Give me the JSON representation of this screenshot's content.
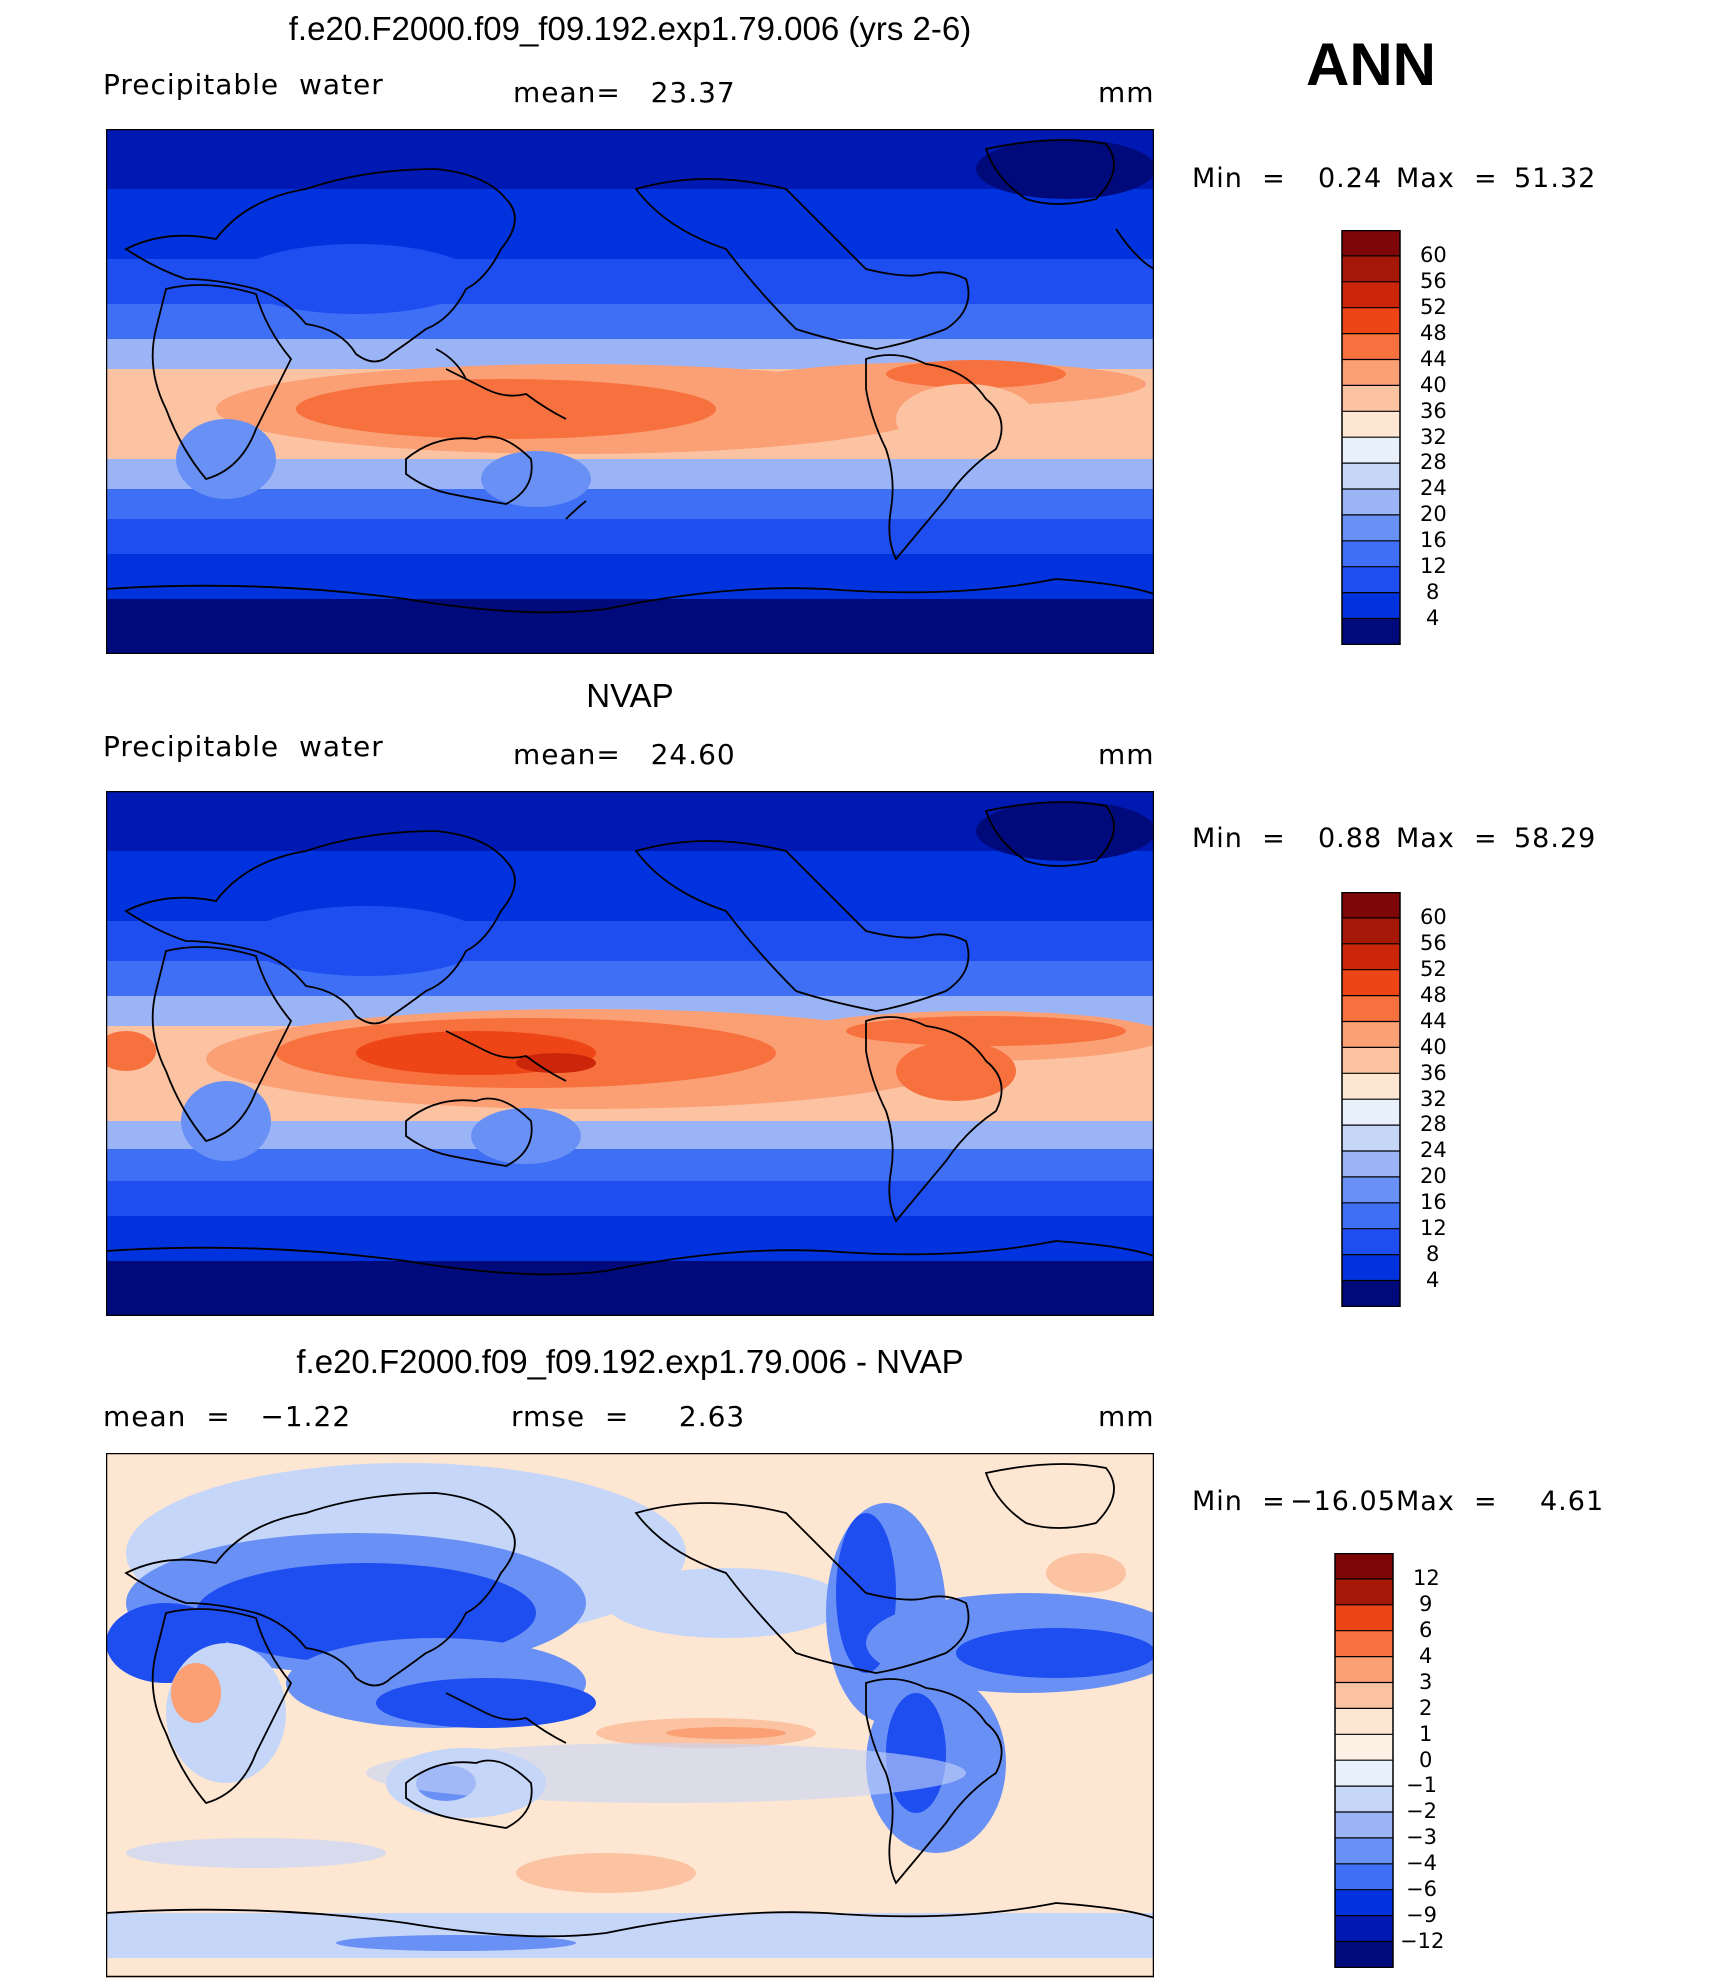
{
  "season": "ANN",
  "colors": {
    "ramp": [
      "#000a7a",
      "#0019b2",
      "#0033dd",
      "#1f4ef0",
      "#3f6ff4",
      "#6990f5",
      "#9bb4f6",
      "#c6d6f8",
      "#e8f0fb",
      "#fde6d2",
      "#fcc3a2",
      "#fb9f74",
      "#f7713f",
      "#ee4517",
      "#cc260a",
      "#a51707",
      "#7d0606"
    ],
    "diff_ramp": [
      "#000a7a",
      "#0019b2",
      "#0033dd",
      "#1f4ef0",
      "#3f6ff4",
      "#6990f5",
      "#9bb4f6",
      "#c6d6f8",
      "#e8f0fb",
      "#fde6d2",
      "#fcc3a2",
      "#fb9f74",
      "#f7713f",
      "#ee4517",
      "#a51707",
      "#7d0606"
    ],
    "coast": "#000000"
  },
  "panels": [
    {
      "id": "model",
      "title": "f.e20.F2000.f09_f09.192.exp1.79.006 (yrs 2-6)",
      "left_label": "Precipitable  water",
      "center_label": "mean=   23.37",
      "units": "mm",
      "min_label": "Min  =",
      "min_value": "0.24",
      "max_label": "Max  =",
      "max_value": "51.32",
      "colorbar": [
        "60",
        "56",
        "52",
        "48",
        "44",
        "40",
        "36",
        "32",
        "28",
        "24",
        "20",
        "16",
        "12",
        "8",
        "4"
      ]
    },
    {
      "id": "obs",
      "title": "NVAP",
      "left_label": "Precipitable  water",
      "center_label": "mean=   24.60",
      "units": "mm",
      "min_label": "Min  =",
      "min_value": "0.88",
      "max_label": "Max  =",
      "max_value": "58.29",
      "colorbar": [
        "60",
        "56",
        "52",
        "48",
        "44",
        "40",
        "36",
        "32",
        "28",
        "24",
        "20",
        "16",
        "12",
        "8",
        "4"
      ]
    },
    {
      "id": "diff",
      "title": "f.e20.F2000.f09_f09.192.exp1.79.006 - NVAP",
      "left_label": "mean  =   −1.22",
      "center_label": "rmse  =     2.63",
      "units": "mm",
      "min_label": "Min  =",
      "min_value": "−16.05",
      "max_label": "Max  =",
      "max_value": "4.61",
      "colorbar": [
        "12",
        "9",
        "6",
        "4",
        "3",
        "2",
        "1",
        "0",
        "−1",
        "−2",
        "−3",
        "−4",
        "−6",
        "−9",
        "−12"
      ]
    }
  ]
}
